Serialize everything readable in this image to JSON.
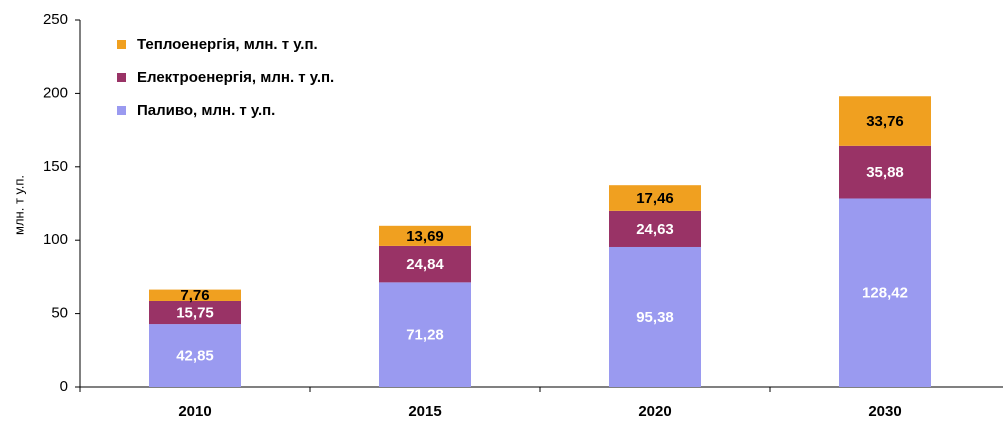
{
  "chart_data": {
    "type": "stacked_bar",
    "y_label": "млн. т у.п.",
    "categories": [
      "2010",
      "2015",
      "2020",
      "2030"
    ],
    "series": [
      {
        "name": "Паливо, млн. т у.п.",
        "color": "#9a9af0",
        "label_color": "#ffffff",
        "values": [
          42.85,
          71.28,
          95.38,
          128.42
        ],
        "value_labels": [
          "42,85",
          "71,28",
          "95,38",
          "128,42"
        ]
      },
      {
        "name": "Електроенергія, млн. т у.п.",
        "color": "#993366",
        "label_color": "#ffffff",
        "values": [
          15.75,
          24.84,
          24.63,
          35.88
        ],
        "value_labels": [
          "15,75",
          "24,84",
          "24,63",
          "35,88"
        ]
      },
      {
        "name": "Теплоенергія, млн. т у.п.",
        "color": "#f0a020",
        "label_color": "#000000",
        "values": [
          7.76,
          13.69,
          17.46,
          33.76
        ],
        "value_labels": [
          "7,76",
          "13,69",
          "17,46",
          "33,76"
        ]
      }
    ],
    "ylim": [
      0,
      250
    ],
    "yticks": [
      0,
      50,
      100,
      150,
      200,
      250
    ],
    "legend": "upper left"
  }
}
